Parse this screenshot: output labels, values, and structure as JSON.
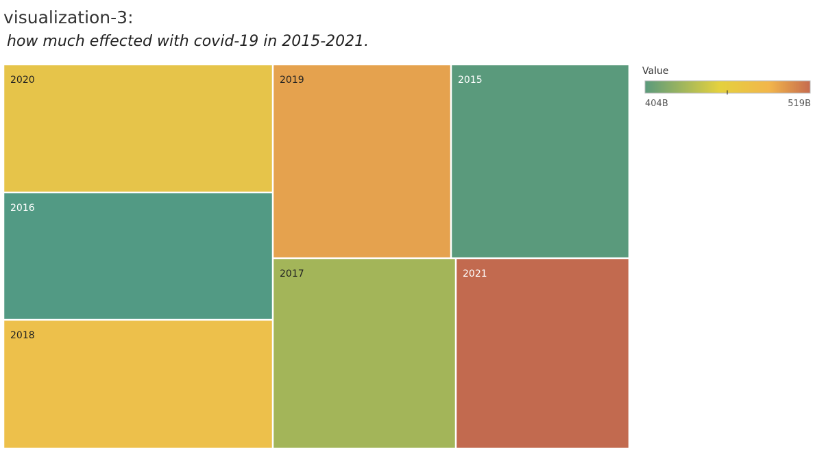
{
  "chart_data": {
    "type": "treemap",
    "title": "visualization-3:",
    "subtitle": "how much effected with covid-19 in 2015-2021.",
    "color_legend": {
      "title": "Value",
      "min_label": "404B",
      "max_label": "519B",
      "min": 404,
      "max": 519,
      "midpoint_tick": true,
      "colors": [
        "#5a9a7c",
        "#e4d13e",
        "#f2b64b",
        "#c66b4e"
      ]
    },
    "cells": [
      {
        "label": "2020",
        "value": 480,
        "color": "#e6c44a"
      },
      {
        "label": "2016",
        "value": 404,
        "color": "#529a84"
      },
      {
        "label": "2018",
        "value": 485,
        "color": "#edc04b"
      },
      {
        "label": "2019",
        "value": 495,
        "color": "#e5a24e"
      },
      {
        "label": "2015",
        "value": 410,
        "color": "#5a9a7c"
      },
      {
        "label": "2017",
        "value": 445,
        "color": "#a3b559"
      },
      {
        "label": "2021",
        "value": 519,
        "color": "#c26a4f"
      }
    ]
  }
}
